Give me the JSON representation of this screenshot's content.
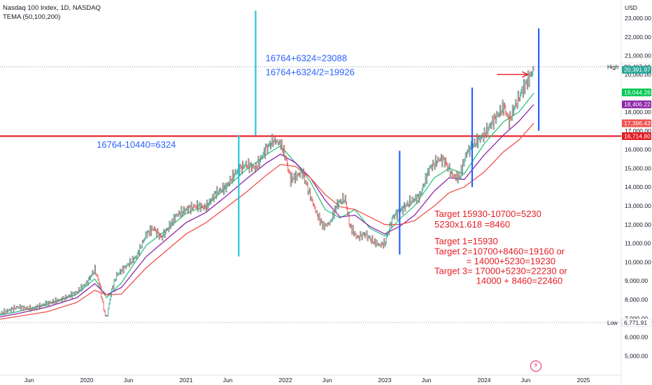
{
  "header": {
    "symbol_line": "Nasdaq 100 Index, 1D, NASDAQ",
    "indicator_line": "TEMA (50,100,200)"
  },
  "chart_data": {
    "type": "line",
    "title": "Nasdaq 100 Index, 1D, NASDAQ",
    "currency": "USD",
    "y_axis_ticks": [
      5000,
      6000,
      7000,
      8000,
      9000,
      10000,
      11000,
      12000,
      13000,
      14000,
      15000,
      16000,
      17000,
      18000,
      19000,
      20000,
      21000,
      22000,
      23000
    ],
    "y_axis_tick_labels": [
      "5,000.00",
      "6,000.00",
      "7,000.00",
      "8,000.00",
      "9,000.00",
      "10,000.00",
      "11,000.00",
      "12,000.00",
      "13,000.00",
      "14,000.00",
      "15,000.00",
      "16,000.00",
      "17,000.00",
      "18,000.00",
      "19,000.00",
      "20,000.00",
      "21,000.00",
      "22,000.00",
      "23,000.00"
    ],
    "ylim": [
      4300,
      23800
    ],
    "x_axis_ticks": [
      {
        "label": "Jun",
        "t": 2019.42
      },
      {
        "label": "2020",
        "t": 2020.0
      },
      {
        "label": "Jun",
        "t": 2020.42
      },
      {
        "label": "2021",
        "t": 2021.0
      },
      {
        "label": "Jun",
        "t": 2021.42
      },
      {
        "label": "2022",
        "t": 2022.0
      },
      {
        "label": "Jun",
        "t": 2022.42
      },
      {
        "label": "2023",
        "t": 2023.0
      },
      {
        "label": "Jun",
        "t": 2023.42
      },
      {
        "label": "2024",
        "t": 2024.0
      },
      {
        "label": "Jun",
        "t": 2024.42
      },
      {
        "label": "2025",
        "t": 2025.0
      }
    ],
    "xlim": [
      2019.0,
      2025.4
    ],
    "series": [
      {
        "name": "Price",
        "color": "#26a69a",
        "x": [
          2019.0,
          2019.15,
          2019.3,
          2019.45,
          2019.6,
          2019.75,
          2019.9,
          2020.0,
          2020.08,
          2020.13,
          2020.17,
          2020.2,
          2020.25,
          2020.3,
          2020.4,
          2020.5,
          2020.6,
          2020.67,
          2020.75,
          2020.83,
          2020.9,
          2021.0,
          2021.1,
          2021.2,
          2021.3,
          2021.4,
          2021.5,
          2021.6,
          2021.7,
          2021.8,
          2021.88,
          2021.95,
          2022.0,
          2022.05,
          2022.12,
          2022.17,
          2022.25,
          2022.32,
          2022.38,
          2022.45,
          2022.52,
          2022.6,
          2022.65,
          2022.72,
          2022.8,
          2022.88,
          2022.95,
          2023.0,
          2023.08,
          2023.17,
          2023.25,
          2023.35,
          2023.45,
          2023.55,
          2023.6,
          2023.68,
          2023.75,
          2023.82,
          2023.9,
          2024.0,
          2024.1,
          2024.2,
          2024.25,
          2024.3,
          2024.38,
          2024.45,
          2024.5
        ],
        "values": [
          7000,
          7300,
          7600,
          7500,
          7800,
          8000,
          8400,
          8900,
          9600,
          8800,
          7500,
          7000,
          8500,
          9300,
          9800,
          10300,
          11500,
          11800,
          11300,
          11900,
          12500,
          12800,
          13000,
          12900,
          13700,
          14000,
          14800,
          15200,
          15000,
          16000,
          16500,
          16300,
          15600,
          14400,
          14600,
          14800,
          13500,
          12500,
          11900,
          12100,
          13100,
          13400,
          11900,
          11300,
          11500,
          11100,
          10900,
          11000,
          12400,
          12800,
          13200,
          13500,
          15000,
          15500,
          15400,
          14600,
          14500,
          15800,
          16300,
          16800,
          17600,
          18300,
          17500,
          18200,
          19100,
          19800,
          20300
        ]
      },
      {
        "name": "TEMA 50",
        "color": "#2fc27f",
        "x": [
          2019.0,
          2019.3,
          2019.6,
          2019.9,
          2020.08,
          2020.2,
          2020.35,
          2020.6,
          2020.8,
          2021.0,
          2021.2,
          2021.4,
          2021.6,
          2021.8,
          2021.95,
          2022.1,
          2022.25,
          2022.4,
          2022.55,
          2022.7,
          2022.85,
          2023.0,
          2023.15,
          2023.3,
          2023.5,
          2023.65,
          2023.8,
          2024.0,
          2024.2,
          2024.35,
          2024.5
        ],
        "values": [
          7050,
          7350,
          7750,
          8300,
          9100,
          8100,
          8900,
          10900,
          11700,
          12600,
          13000,
          13950,
          14900,
          15700,
          16200,
          15300,
          14300,
          12800,
          12350,
          12800,
          11800,
          11400,
          12300,
          13000,
          14500,
          15000,
          14700,
          16300,
          17500,
          18000,
          19000
        ]
      },
      {
        "name": "TEMA 100",
        "color": "#8e24aa",
        "x": [
          2019.0,
          2019.3,
          2019.6,
          2019.9,
          2020.08,
          2020.2,
          2020.35,
          2020.6,
          2020.8,
          2021.0,
          2021.2,
          2021.4,
          2021.6,
          2021.8,
          2021.95,
          2022.1,
          2022.25,
          2022.4,
          2022.55,
          2022.7,
          2022.85,
          2023.0,
          2023.15,
          2023.3,
          2023.5,
          2023.65,
          2023.8,
          2024.0,
          2024.2,
          2024.35,
          2024.5
        ],
        "values": [
          6950,
          7250,
          7600,
          8100,
          8850,
          8250,
          8650,
          10300,
          11200,
          12100,
          12650,
          13500,
          14400,
          15250,
          15750,
          15300,
          14500,
          13300,
          12400,
          12500,
          11900,
          11500,
          11900,
          12500,
          13800,
          14500,
          14400,
          15700,
          16800,
          17500,
          18400
        ]
      },
      {
        "name": "TEMA 200",
        "color": "#ef5350",
        "x": [
          2019.0,
          2019.3,
          2019.6,
          2019.9,
          2020.08,
          2020.2,
          2020.35,
          2020.6,
          2020.8,
          2021.0,
          2021.2,
          2021.4,
          2021.6,
          2021.8,
          2021.95,
          2022.1,
          2022.25,
          2022.4,
          2022.55,
          2022.7,
          2022.85,
          2023.0,
          2023.15,
          2023.3,
          2023.5,
          2023.65,
          2023.8,
          2024.0,
          2024.2,
          2024.35,
          2024.5
        ],
        "values": [
          6850,
          7100,
          7350,
          7850,
          8500,
          8250,
          8300,
          9700,
          10600,
          11500,
          12100,
          12900,
          13700,
          14600,
          15200,
          15100,
          14500,
          13600,
          12950,
          12800,
          12400,
          12000,
          12000,
          12200,
          13000,
          13700,
          14000,
          14800,
          15900,
          16500,
          17400
        ]
      }
    ],
    "horizontal_lines": [
      {
        "name": "support-resistance",
        "value": 16714.8,
        "color": "#e51c23",
        "style": "solid"
      },
      {
        "name": "high-line",
        "value": 20407,
        "color": "#9aa0a6",
        "style": "dotted"
      },
      {
        "name": "low-line",
        "value": 6771.91,
        "color": "#9aa0a6",
        "style": "dotted"
      }
    ],
    "vertical_lines": [
      {
        "t": 2021.53,
        "from": 10300,
        "to": 16764,
        "color": "#26c6da"
      },
      {
        "t": 2021.7,
        "from": 16764,
        "to": 23400,
        "color": "#26c6da"
      },
      {
        "t": 2023.15,
        "from": 10400,
        "to": 15930,
        "color": "#2962ff"
      },
      {
        "t": 2023.88,
        "from": 14000,
        "to": 19300,
        "color": "#2962ff"
      },
      {
        "t": 2024.55,
        "from": 17000,
        "to": 22460,
        "color": "#2962ff"
      }
    ],
    "arrow": {
      "from_t": 2024.13,
      "to_t": 2024.44,
      "value": 20000,
      "color": "#e51c23"
    },
    "price_tags": [
      {
        "label": "High",
        "value": "20,407.00",
        "y": 20407,
        "bg": "#ffffff",
        "fg": "#131722",
        "bordered": true
      },
      {
        "label": "",
        "value": "20,391.97",
        "y": 20250,
        "bg": "#26a69a",
        "fg": "#ffffff",
        "bordered": false
      },
      {
        "label": "",
        "value": "19,044.26",
        "y": 19044.26,
        "bg": "#00c853",
        "fg": "#ffffff",
        "bordered": false
      },
      {
        "label": "",
        "value": "18,406.22",
        "y": 18406.22,
        "bg": "#8e24aa",
        "fg": "#ffffff",
        "bordered": false
      },
      {
        "label": "",
        "value": "17,396.43",
        "y": 17396.43,
        "bg": "#ef5350",
        "fg": "#ffffff",
        "bordered": false
      },
      {
        "label": "",
        "value": "16,714.80",
        "y": 16714.8,
        "bg": "#e51c23",
        "fg": "#ffffff",
        "bordered": false
      },
      {
        "label": "Low",
        "value": "6,771.91",
        "y": 6771.91,
        "bg": "#ffffff",
        "fg": "#131722",
        "bordered": true
      }
    ],
    "annotations": [
      {
        "name": "annotation-range-calc",
        "text": "16764-10440=6324",
        "t": 2020.1,
        "y": 16100,
        "color": "#2962ff",
        "size": 13
      },
      {
        "name": "annotation-target-full",
        "text": "16764+6324=23088",
        "t": 2021.8,
        "y": 20700,
        "color": "#2962ff",
        "size": 13
      },
      {
        "name": "annotation-target-half",
        "text": "16764+6324/2=19926",
        "t": 2021.8,
        "y": 19950,
        "color": "#2962ff",
        "size": 13
      },
      {
        "name": "annotation-target-calc",
        "text": "Target 15930-10700=5230",
        "t": 2023.5,
        "y": 12400,
        "color": "#e51c23",
        "size": 13
      },
      {
        "name": "annotation-fib",
        "text": "5230x1.618 =8460",
        "t": 2023.5,
        "y": 11850,
        "color": "#e51c23",
        "size": 13
      },
      {
        "name": "annotation-target-1",
        "text": "Target 1=15930",
        "t": 2023.5,
        "y": 10950,
        "color": "#e51c23",
        "size": 13
      },
      {
        "name": "annotation-target-2",
        "text": "Target 2=10700+8460=19160 or",
        "t": 2023.5,
        "y": 10400,
        "color": "#e51c23",
        "size": 13
      },
      {
        "name": "annotation-target-2b",
        "text": "= 14000+5230=19230",
        "t": 2023.82,
        "y": 9880,
        "color": "#e51c23",
        "size": 13
      },
      {
        "name": "annotation-target-3",
        "text": "Target 3= 17000+5230=22230 or",
        "t": 2023.5,
        "y": 9360,
        "color": "#e51c23",
        "size": 13
      },
      {
        "name": "annotation-target-3b",
        "text": "14000 + 8460=22460",
        "t": 2023.92,
        "y": 8840,
        "color": "#e51c23",
        "size": 13
      }
    ]
  }
}
